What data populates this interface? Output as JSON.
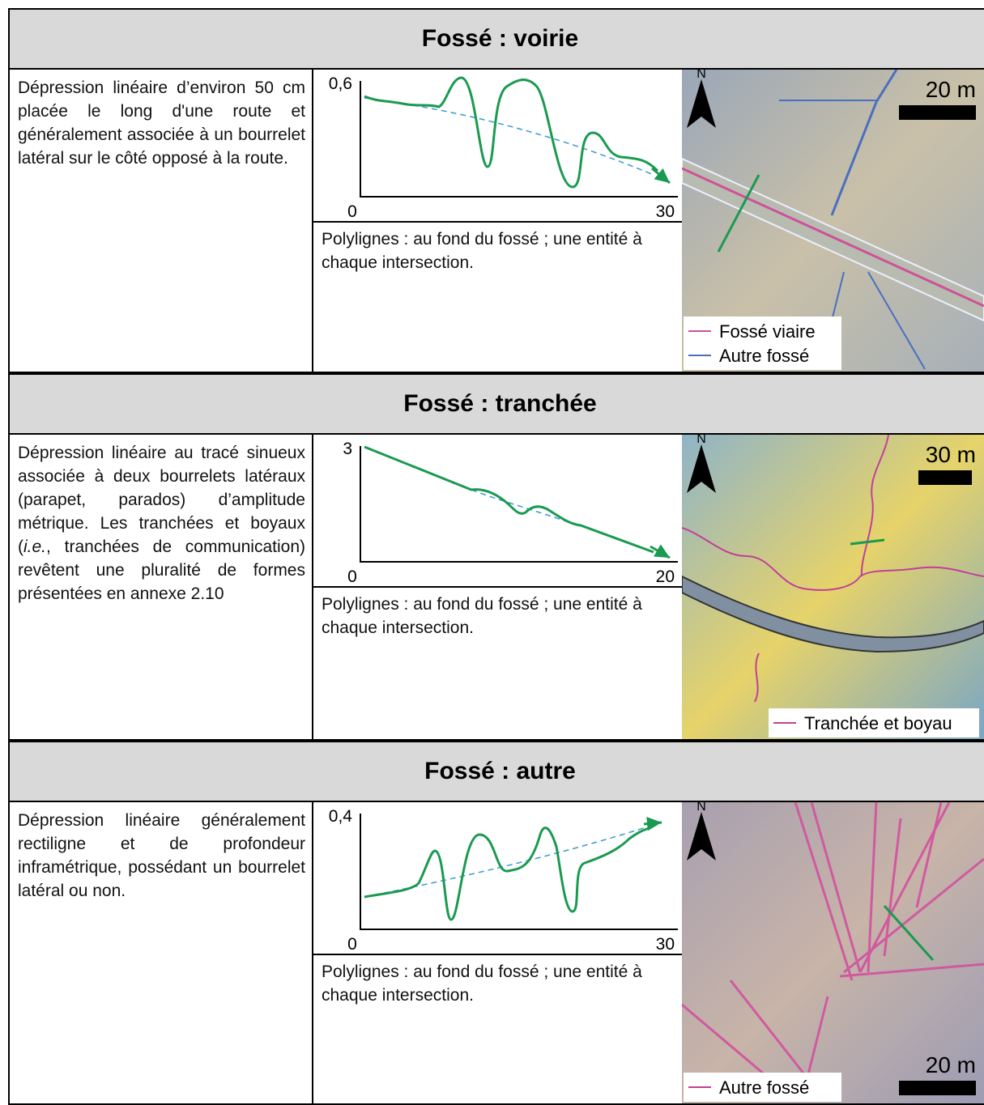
{
  "sections": [
    {
      "title": "Fossé : voirie",
      "description": [
        "Dépression linéaire d’environ 50 cm placée le long d'une route et généralement associée à un bourrelet latéral sur le côté opposé à la route."
      ],
      "profile": {
        "y_max": "0,6",
        "origin": "0",
        "x_max": "30",
        "caption": "Polylignes : au fond du fossé ; une entité à chaque intersection."
      },
      "map": {
        "north": "N",
        "scale": "20 m",
        "legend": [
          {
            "label": "Fossé viaire",
            "color": "#d0509a"
          },
          {
            "label": "Autre fossé",
            "color": "#4a6fc0"
          }
        ]
      }
    },
    {
      "title": "Fossé : tranchée",
      "description": [
        "Dépression linéaire au tracé sinueux associée à deux bourrelets latéraux (parapet, parados) d’amplitude métrique. Les tranchées et boyaux (",
        "i.e.",
        ", tranchées de communication) revêtent une pluralité de formes présentées en annexe 2.10"
      ],
      "profile": {
        "y_max": "3",
        "origin": "0",
        "x_max": "20",
        "caption": "Polylignes : au fond du fossé ; une entité à chaque intersection."
      },
      "map": {
        "north": "N",
        "scale": "30 m",
        "legend": [
          {
            "label": "Tranchée et boyau",
            "color": "#c0409a"
          }
        ]
      }
    },
    {
      "title": "Fossé : autre",
      "description": [
        "Dépression linéaire généralement rectiligne et de profondeur inframétrique, possédant un bourrelet latéral ou non."
      ],
      "profile": {
        "y_max": "0,4",
        "origin": "0",
        "x_max": "30",
        "caption": "Polylignes : au fond du fossé ; une entité à chaque intersection."
      },
      "map": {
        "north": "N",
        "scale": "20 m",
        "legend": [
          {
            "label": "Autre fossé",
            "color": "#c0409a"
          }
        ]
      }
    }
  ]
}
